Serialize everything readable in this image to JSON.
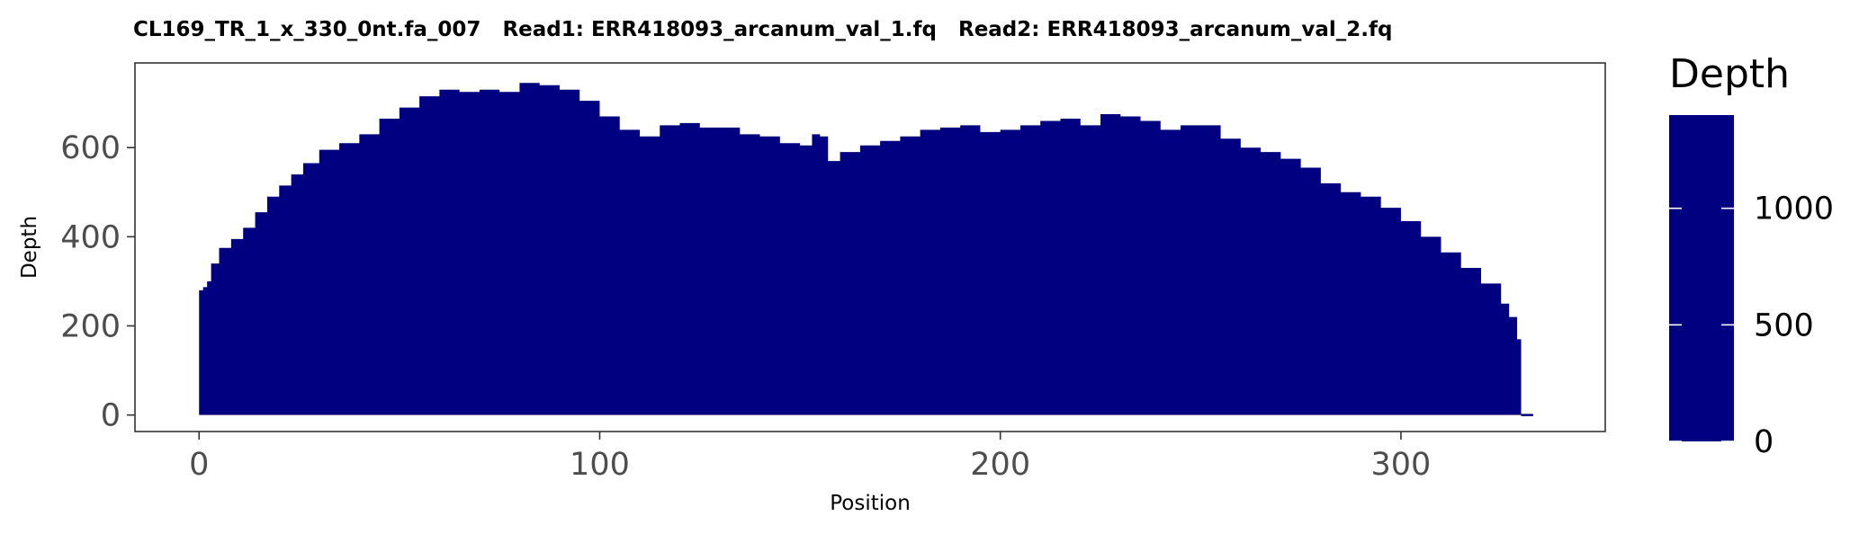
{
  "chart_data": {
    "type": "area",
    "title": "CL169_TR_1_x_330_0nt.fa_007   Read1: ERR418093_arcanum_val_1.fq   Read2: ERR418093_arcanum_val_2.fq",
    "xlabel": "Position",
    "ylabel": "Depth",
    "xlim": [
      -16,
      351
    ],
    "ylim": [
      -37,
      790
    ],
    "xticks": [
      0,
      100,
      200,
      300
    ],
    "yticks": [
      0,
      200,
      400,
      600
    ],
    "grid": false,
    "legend": {
      "title": "Depth",
      "position": "right",
      "range": [
        0,
        1400
      ],
      "ticks": [
        0,
        500,
        1000
      ],
      "colors": [
        "#000080",
        "#1de87a",
        "#ffff00",
        "#ff8c00",
        "#ff0000"
      ]
    },
    "series": [
      {
        "x": [
          0,
          1,
          2,
          3,
          5,
          8,
          11,
          14,
          17,
          20,
          23,
          26,
          30,
          35,
          40,
          45,
          50,
          55,
          60,
          65,
          70,
          75,
          80,
          85,
          90,
          95,
          100,
          105,
          110,
          115,
          120,
          125,
          130,
          135,
          140,
          145,
          150,
          153,
          155,
          157,
          160,
          165,
          170,
          175,
          180,
          185,
          190,
          195,
          200,
          205,
          210,
          215,
          220,
          225,
          230,
          235,
          240,
          245,
          250,
          255,
          260,
          265,
          270,
          275,
          280,
          285,
          290,
          295,
          300,
          305,
          310,
          315,
          320,
          325,
          327,
          329,
          330,
          331,
          333
        ],
        "y": [
          280,
          287,
          300,
          340,
          375,
          395,
          420,
          455,
          490,
          515,
          540,
          565,
          595,
          610,
          630,
          665,
          690,
          715,
          730,
          725,
          730,
          725,
          745,
          740,
          730,
          705,
          670,
          640,
          625,
          650,
          655,
          645,
          645,
          630,
          625,
          610,
          605,
          630,
          625,
          570,
          590,
          605,
          615,
          625,
          640,
          645,
          650,
          635,
          640,
          650,
          660,
          665,
          650,
          675,
          670,
          660,
          640,
          650,
          650,
          620,
          600,
          590,
          575,
          555,
          520,
          500,
          490,
          465,
          435,
          400,
          365,
          330,
          295,
          250,
          220,
          170,
          0,
          0,
          0
        ]
      }
    ]
  }
}
